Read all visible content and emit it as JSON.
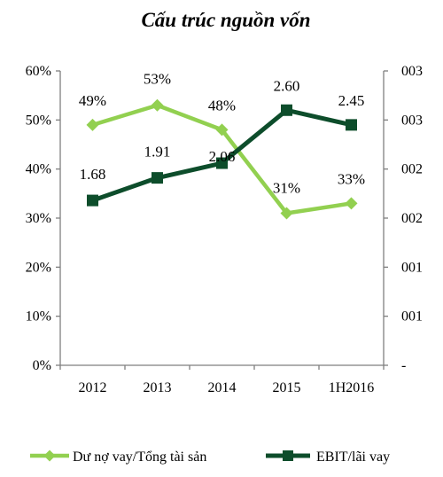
{
  "chart_data": {
    "type": "line",
    "title": "Cấu trúc nguồn vốn",
    "categories": [
      "2012",
      "2013",
      "2014",
      "2015",
      "1H2016"
    ],
    "left_axis": {
      "ticks": [
        "0%",
        "10%",
        "20%",
        "30%",
        "40%",
        "50%",
        "60%"
      ],
      "ylim": [
        0,
        60
      ]
    },
    "right_axis": {
      "ticks": [
        "-",
        "001",
        "001",
        "002",
        "002",
        "003",
        "003"
      ],
      "ylim": [
        0,
        3.0
      ]
    },
    "series": [
      {
        "name": "Dư nợ vay/Tổng tài sản",
        "axis": "left",
        "color": "#92d050",
        "marker": "diamond",
        "values": [
          49,
          53,
          48,
          31,
          33
        ],
        "labels": [
          "49%",
          "53%",
          "48%",
          "31%",
          "33%"
        ]
      },
      {
        "name": "EBIT/lãi vay",
        "axis": "right",
        "color": "#0d4d2b",
        "marker": "square",
        "values": [
          1.68,
          1.91,
          2.06,
          2.6,
          2.45
        ],
        "labels": [
          "1.68",
          "1.91",
          "2.06",
          "2.60",
          "2.45"
        ]
      }
    ],
    "grid": false,
    "legend_position": "bottom"
  }
}
